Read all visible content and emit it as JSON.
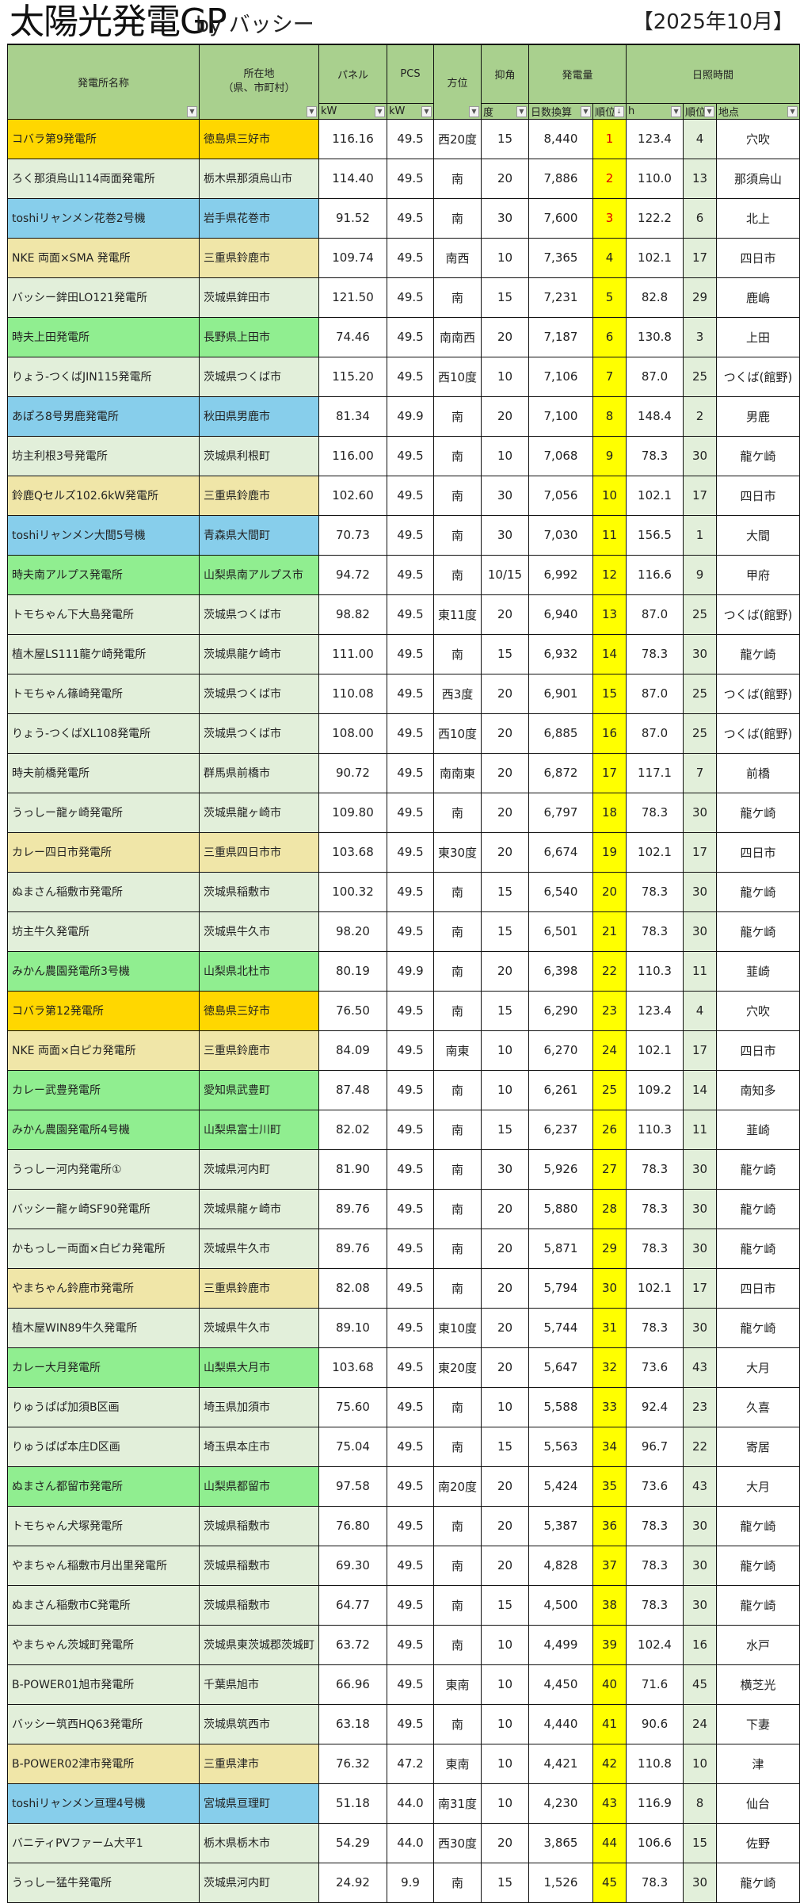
{
  "header": {
    "title": "太陽光発電GP",
    "by": "by バッシー",
    "month": "【2025年10月】"
  },
  "columns": {
    "name": "発電所名称",
    "location": "所在地\n（県、市町村）",
    "panel": "パネル",
    "pcs": "PCS",
    "direction": "方位",
    "tilt": "抑角",
    "generation": "発電量",
    "sunshine": "日照時間",
    "panel_unit": "kW",
    "pcs_unit": "kW",
    "tilt_unit": "度",
    "gen_daily": "日数換算",
    "gen_rank": "順位",
    "sun_h": "h",
    "sun_rank": "順位",
    "sun_place": "地点"
  },
  "colors": {
    "o": "#ffd700",
    "g": "#e2efda",
    "b": "#87ceeb",
    "k": "#f0e6a8",
    "G": "#90ee90",
    "header": "#a9d08e",
    "rank": "#ffff00"
  },
  "rows": [
    [
      "コバラ第9発電所",
      "徳島県三好市",
      "116.16",
      "49.5",
      "西20度",
      "15",
      "8,440",
      "1",
      "123.4",
      "4",
      "穴吹",
      "o"
    ],
    [
      "ろく那須烏山114両面発電所",
      "栃木県那須烏山市",
      "114.40",
      "49.5",
      "南",
      "20",
      "7,886",
      "2",
      "110.0",
      "13",
      "那須烏山",
      "g"
    ],
    [
      "toshiリャンメン花巻2号機",
      "岩手県花巻市",
      "91.52",
      "49.5",
      "南",
      "30",
      "7,600",
      "3",
      "122.2",
      "6",
      "北上",
      "b"
    ],
    [
      "NKE 両面×SMA 発電所",
      "三重県鈴鹿市",
      "109.74",
      "49.5",
      "南西",
      "10",
      "7,365",
      "4",
      "102.1",
      "17",
      "四日市",
      "k"
    ],
    [
      "バッシー鉾田LO121発電所",
      "茨城県鉾田市",
      "121.50",
      "49.5",
      "南",
      "15",
      "7,231",
      "5",
      "82.8",
      "29",
      "鹿嶋",
      "g"
    ],
    [
      "時夫上田発電所",
      "長野県上田市",
      "74.46",
      "49.5",
      "南南西",
      "20",
      "7,187",
      "6",
      "130.8",
      "3",
      "上田",
      "G"
    ],
    [
      "りょう-つくばJIN115発電所",
      "茨城県つくば市",
      "115.20",
      "49.5",
      "西10度",
      "10",
      "7,106",
      "7",
      "87.0",
      "25",
      "つくば(館野)",
      "g"
    ],
    [
      "あぽろ8号男鹿発電所",
      "秋田県男鹿市",
      "81.34",
      "49.9",
      "南",
      "20",
      "7,100",
      "8",
      "148.4",
      "2",
      "男鹿",
      "b"
    ],
    [
      "坊主利根3号発電所",
      "茨城県利根町",
      "116.00",
      "49.5",
      "南",
      "10",
      "7,068",
      "9",
      "78.3",
      "30",
      "龍ケ崎",
      "g"
    ],
    [
      "鈴鹿Qセルズ102.6kW発電所",
      "三重県鈴鹿市",
      "102.60",
      "49.5",
      "南",
      "30",
      "7,056",
      "10",
      "102.1",
      "17",
      "四日市",
      "k"
    ],
    [
      "toshiリャンメン大間5号機",
      "青森県大間町",
      "70.73",
      "49.5",
      "南",
      "30",
      "7,030",
      "11",
      "156.5",
      "1",
      "大間",
      "b"
    ],
    [
      "時夫南アルプス発電所",
      "山梨県南アルプス市",
      "94.72",
      "49.5",
      "南",
      "10/15",
      "6,992",
      "12",
      "116.6",
      "9",
      "甲府",
      "G"
    ],
    [
      "トモちゃん下大島発電所",
      "茨城県つくば市",
      "98.82",
      "49.5",
      "東11度",
      "20",
      "6,940",
      "13",
      "87.0",
      "25",
      "つくば(館野)",
      "g"
    ],
    [
      "植木屋LS111龍ケ崎発電所",
      "茨城県龍ケ崎市",
      "111.00",
      "49.5",
      "南",
      "15",
      "6,932",
      "14",
      "78.3",
      "30",
      "龍ケ崎",
      "g"
    ],
    [
      "トモちゃん篠崎発電所",
      "茨城県つくば市",
      "110.08",
      "49.5",
      "西3度",
      "20",
      "6,901",
      "15",
      "87.0",
      "25",
      "つくば(館野)",
      "g"
    ],
    [
      "りょう-つくばXL108発電所",
      "茨城県つくば市",
      "108.00",
      "49.5",
      "西10度",
      "20",
      "6,885",
      "16",
      "87.0",
      "25",
      "つくば(館野)",
      "g"
    ],
    [
      "時夫前橋発電所",
      "群馬県前橋市",
      "90.72",
      "49.5",
      "南南東",
      "20",
      "6,872",
      "17",
      "117.1",
      "7",
      "前橋",
      "g"
    ],
    [
      "うっしー龍ヶ崎発電所",
      "茨城県龍ヶ崎市",
      "109.80",
      "49.5",
      "南",
      "20",
      "6,797",
      "18",
      "78.3",
      "30",
      "龍ケ崎",
      "g"
    ],
    [
      "カレー四日市発電所",
      "三重県四日市市",
      "103.68",
      "49.5",
      "東30度",
      "20",
      "6,674",
      "19",
      "102.1",
      "17",
      "四日市",
      "k"
    ],
    [
      "ぬまさん稲敷市発電所",
      "茨城県稲敷市",
      "100.32",
      "49.5",
      "南",
      "15",
      "6,540",
      "20",
      "78.3",
      "30",
      "龍ケ崎",
      "g"
    ],
    [
      "坊主牛久発電所",
      "茨城県牛久市",
      "98.20",
      "49.5",
      "南",
      "15",
      "6,501",
      "21",
      "78.3",
      "30",
      "龍ケ崎",
      "g"
    ],
    [
      "みかん農園発電所3号機",
      "山梨県北杜市",
      "80.19",
      "49.9",
      "南",
      "20",
      "6,398",
      "22",
      "110.3",
      "11",
      "韮崎",
      "G"
    ],
    [
      "コバラ第12発電所",
      "徳島県三好市",
      "76.50",
      "49.5",
      "南",
      "15",
      "6,290",
      "23",
      "123.4",
      "4",
      "穴吹",
      "o"
    ],
    [
      "NKE 両面×白ピカ発電所",
      "三重県鈴鹿市",
      "84.09",
      "49.5",
      "南東",
      "10",
      "6,270",
      "24",
      "102.1",
      "17",
      "四日市",
      "k"
    ],
    [
      "カレー武豊発電所",
      "愛知県武豊町",
      "87.48",
      "49.5",
      "南",
      "10",
      "6,261",
      "25",
      "109.2",
      "14",
      "南知多",
      "G"
    ],
    [
      "みかん農園発電所4号機",
      "山梨県富士川町",
      "82.02",
      "49.5",
      "南",
      "15",
      "6,237",
      "26",
      "110.3",
      "11",
      "韮崎",
      "G"
    ],
    [
      "うっしー河内発電所①",
      "茨城県河内町",
      "81.90",
      "49.5",
      "南",
      "30",
      "5,926",
      "27",
      "78.3",
      "30",
      "龍ケ崎",
      "g"
    ],
    [
      "バッシー龍ヶ崎SF90発電所",
      "茨城県龍ヶ崎市",
      "89.76",
      "49.5",
      "南",
      "20",
      "5,880",
      "28",
      "78.3",
      "30",
      "龍ケ崎",
      "g"
    ],
    [
      "かもっしー両面×白ピカ発電所",
      "茨城県牛久市",
      "89.76",
      "49.5",
      "南",
      "20",
      "5,871",
      "29",
      "78.3",
      "30",
      "龍ケ崎",
      "g"
    ],
    [
      "やまちゃん鈴鹿市発電所",
      "三重県鈴鹿市",
      "82.08",
      "49.5",
      "南",
      "20",
      "5,794",
      "30",
      "102.1",
      "17",
      "四日市",
      "k"
    ],
    [
      "植木屋WIN89牛久発電所",
      "茨城県牛久市",
      "89.10",
      "49.5",
      "東10度",
      "20",
      "5,744",
      "31",
      "78.3",
      "30",
      "龍ケ崎",
      "g"
    ],
    [
      "カレー大月発電所",
      "山梨県大月市",
      "103.68",
      "49.5",
      "東20度",
      "20",
      "5,647",
      "32",
      "73.6",
      "43",
      "大月",
      "G"
    ],
    [
      "りゅうぱぱ加須B区画",
      "埼玉県加須市",
      "75.60",
      "49.5",
      "南",
      "10",
      "5,588",
      "33",
      "92.4",
      "23",
      "久喜",
      "g"
    ],
    [
      "りゅうぱぱ本庄D区画",
      "埼玉県本庄市",
      "75.04",
      "49.5",
      "南",
      "15",
      "5,563",
      "34",
      "96.7",
      "22",
      "寄居",
      "g"
    ],
    [
      "ぬまさん都留市発電所",
      "山梨県都留市",
      "97.58",
      "49.5",
      "南20度",
      "20",
      "5,424",
      "35",
      "73.6",
      "43",
      "大月",
      "G"
    ],
    [
      "トモちゃん犬塚発電所",
      "茨城県稲敷市",
      "76.80",
      "49.5",
      "南",
      "20",
      "5,387",
      "36",
      "78.3",
      "30",
      "龍ケ崎",
      "g"
    ],
    [
      "やまちゃん稲敷市月出里発電所",
      "茨城県稲敷市",
      "69.30",
      "49.5",
      "南",
      "20",
      "4,828",
      "37",
      "78.3",
      "30",
      "龍ケ崎",
      "g"
    ],
    [
      "ぬまさん稲敷市C発電所",
      "茨城県稲敷市",
      "64.77",
      "49.5",
      "南",
      "15",
      "4,500",
      "38",
      "78.3",
      "30",
      "龍ケ崎",
      "g"
    ],
    [
      "やまちゃん茨城町発電所",
      "茨城県東茨城郡茨城町",
      "63.72",
      "49.5",
      "南",
      "10",
      "4,499",
      "39",
      "102.4",
      "16",
      "水戸",
      "g"
    ],
    [
      "B-POWER01旭市発電所",
      "千葉県旭市",
      "66.96",
      "49.5",
      "東南",
      "10",
      "4,450",
      "40",
      "71.6",
      "45",
      "横芝光",
      "g"
    ],
    [
      "バッシー筑西HQ63発電所",
      "茨城県筑西市",
      "63.18",
      "49.5",
      "南",
      "10",
      "4,440",
      "41",
      "90.6",
      "24",
      "下妻",
      "g"
    ],
    [
      "B-POWER02津市発電所",
      "三重県津市",
      "76.32",
      "47.2",
      "東南",
      "10",
      "4,421",
      "42",
      "110.8",
      "10",
      "津",
      "k"
    ],
    [
      "toshiリャンメン亘理4号機",
      "宮城県亘理町",
      "51.18",
      "44.0",
      "南31度",
      "10",
      "4,230",
      "43",
      "116.9",
      "8",
      "仙台",
      "b"
    ],
    [
      "バニティPVファーム大平1",
      "栃木県栃木市",
      "54.29",
      "44.0",
      "西30度",
      "20",
      "3,865",
      "44",
      "106.6",
      "15",
      "佐野",
      "g"
    ],
    [
      "うっしー猛牛発電所",
      "茨城県河内町",
      "24.92",
      "9.9",
      "南",
      "15",
      "1,526",
      "45",
      "78.3",
      "30",
      "龍ケ崎",
      "g"
    ]
  ]
}
